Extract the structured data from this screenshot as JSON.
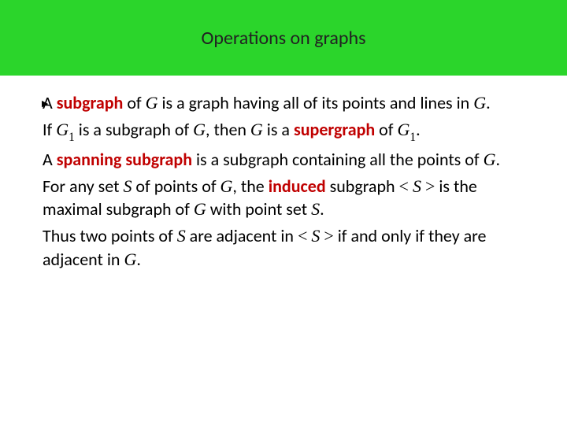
{
  "colors": {
    "title_bg": "#2bd52b",
    "term_color": "#c00000",
    "text_color": "#000000",
    "background": "#ffffff"
  },
  "typography": {
    "title_fontsize": 24,
    "body_fontsize": 22,
    "line_height": 1.35
  },
  "title": "Operations on graphs",
  "p1": {
    "t1": "A ",
    "term": "subgraph",
    "t2": " of ",
    "G": "G",
    "t3": " is a graph having all of its points and lines in ",
    "G2": "G",
    "t4": "."
  },
  "p2": {
    "t1": "If ",
    "G1": "G",
    "sub1": "1",
    "t2": " is a subgraph of ",
    "G": "G",
    "t3": ", then ",
    "G3": "G",
    "t4": " is a ",
    "term": "supergraph",
    "t5": " of ",
    "G4": "G",
    "sub2": "1",
    "t6": "."
  },
  "p3": {
    "t1": "A ",
    "term": "spanning subgraph",
    "t2": " is a subgraph containing all the points of ",
    "G": "G",
    "t3": "."
  },
  "p4": {
    "t1": "For any set ",
    "S": "S",
    "t2": " of points of ",
    "G": "G",
    "t3": ", the ",
    "term": "induced",
    "t4": " subgraph ",
    "lt1": "<",
    "S2": "S",
    "gt1": ">",
    "t5": " is the maximal subgraph of ",
    "G2": "G",
    "t6": " with point set ",
    "S3": "S",
    "t7": "."
  },
  "p5": {
    "t1": "Thus two points of ",
    "S": "S",
    "t2": " are adjacent in ",
    "lt1": "<",
    "S2": "S",
    "gt1": ">",
    "t3": " if and only if they are adjacent in ",
    "G": "G",
    "t4": "."
  }
}
